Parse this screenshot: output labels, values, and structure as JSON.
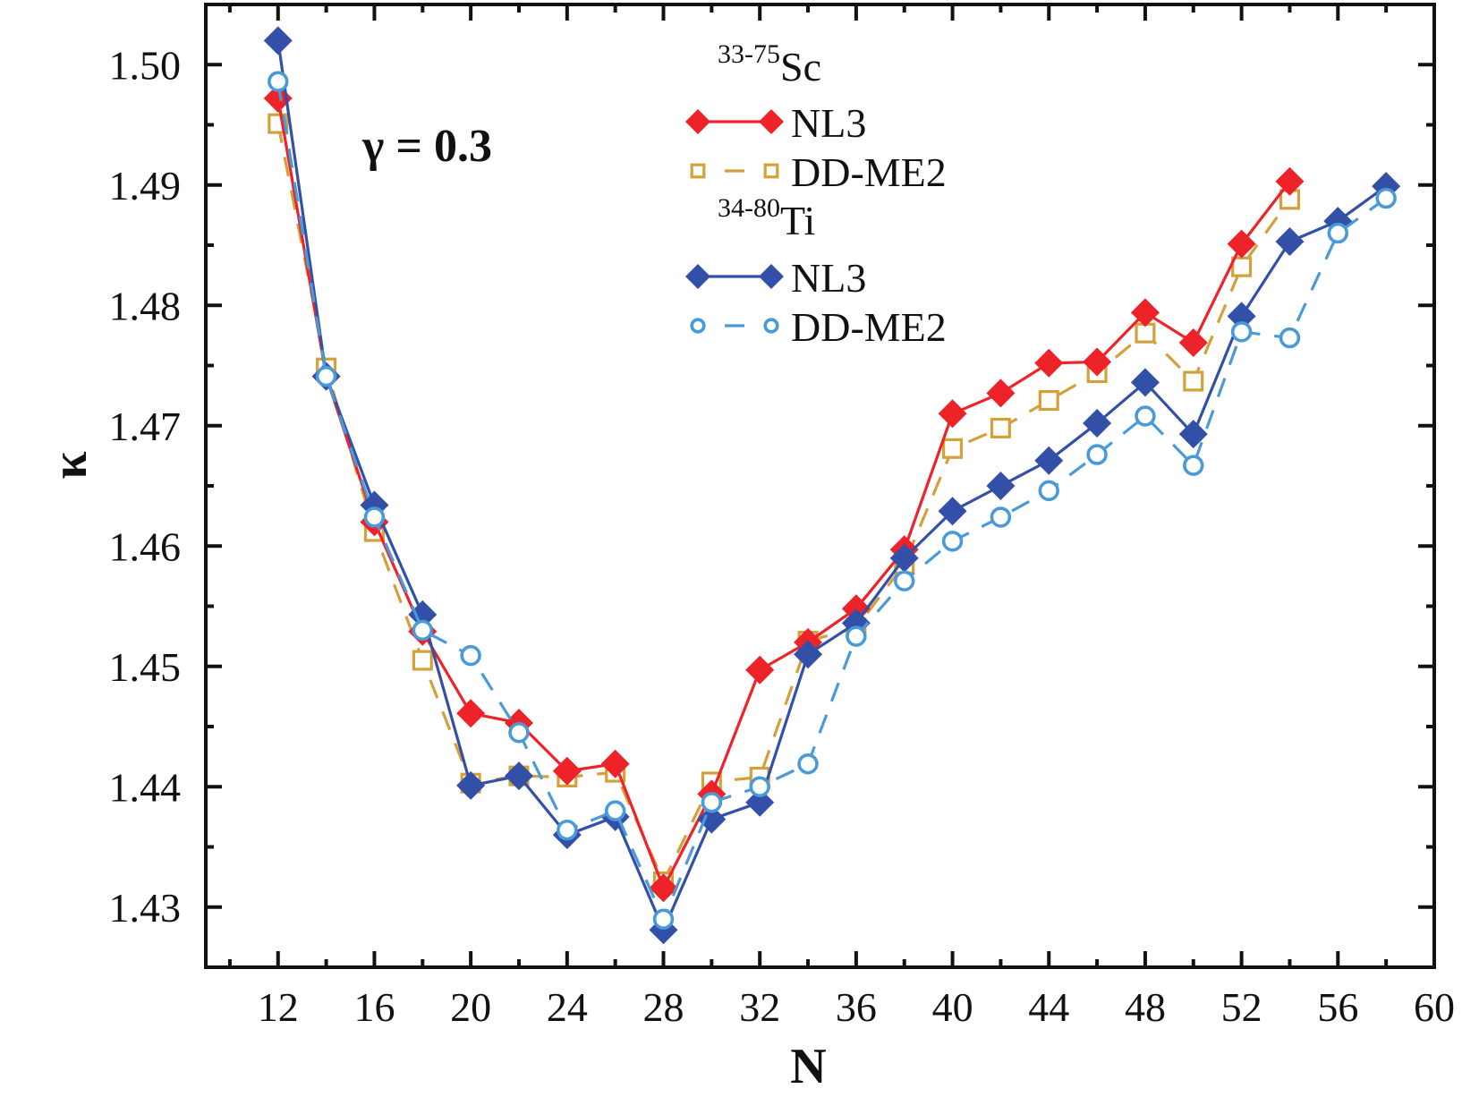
{
  "chart_data": {
    "type": "line",
    "title": "",
    "xlabel": "N",
    "ylabel": "κ",
    "xlim": [
      9,
      60
    ],
    "ylim": [
      1.425,
      1.505
    ],
    "grid": false,
    "x_ticks": [
      12,
      16,
      20,
      24,
      28,
      32,
      36,
      40,
      44,
      48,
      52,
      56,
      60
    ],
    "x_tick_labels": [
      "12",
      "16",
      "20",
      "24",
      "28",
      "32",
      "36",
      "40",
      "44",
      "48",
      "52",
      "56",
      "60"
    ],
    "y_ticks": [
      1.43,
      1.44,
      1.45,
      1.46,
      1.47,
      1.48,
      1.49,
      1.5
    ],
    "y_tick_labels": [
      "1.43",
      "1.44",
      "1.45",
      "1.46",
      "1.47",
      "1.48",
      "1.49",
      "1.50"
    ],
    "annotation": "γ = 0.3",
    "legend_position": "top-center",
    "legend_groups": [
      {
        "isotope_mass": "33-75",
        "element": "Sc"
      },
      {
        "isotope_mass": "34-80",
        "element": "Ti"
      }
    ],
    "series": [
      {
        "name": "NL3",
        "group": "Sc",
        "color": "#ee2229",
        "marker": "diamond-filled",
        "line": "solid",
        "x": [
          12,
          14,
          16,
          18,
          20,
          22,
          24,
          26,
          28,
          30,
          32,
          34,
          36,
          38,
          40,
          42,
          44,
          46,
          48,
          50,
          52,
          54
        ],
        "y": [
          1.4972,
          1.4741,
          1.462,
          1.4529,
          1.4461,
          1.4453,
          1.4413,
          1.4419,
          1.4316,
          1.4394,
          1.4497,
          1.452,
          1.4548,
          1.4597,
          1.471,
          1.4727,
          1.4752,
          1.4753,
          1.4794,
          1.4769,
          1.4851,
          1.4903
        ]
      },
      {
        "name": "DD-ME2",
        "group": "Sc",
        "color": "#d4a03a",
        "marker": "square-open",
        "line": "dashed",
        "x": [
          12,
          14,
          16,
          18,
          20,
          22,
          24,
          26,
          28,
          30,
          32,
          34,
          36,
          38,
          40,
          42,
          44,
          46,
          48,
          50,
          52,
          54
        ],
        "y": [
          1.4951,
          1.4748,
          1.4612,
          1.4505,
          1.4403,
          1.4409,
          1.4408,
          1.4412,
          1.4321,
          1.4404,
          1.4408,
          1.4521,
          1.4532,
          1.4585,
          1.4681,
          1.4698,
          1.4721,
          1.4744,
          1.4777,
          1.4737,
          1.4832,
          1.4888
        ]
      },
      {
        "name": "NL3",
        "group": "Ti",
        "color": "#3350a8",
        "marker": "diamond-filled",
        "line": "solid",
        "x": [
          12,
          14,
          16,
          18,
          20,
          22,
          24,
          26,
          28,
          30,
          32,
          34,
          36,
          38,
          40,
          42,
          44,
          46,
          48,
          50,
          52,
          54,
          56,
          58
        ],
        "y": [
          1.502,
          1.4741,
          1.4634,
          1.4543,
          1.4401,
          1.4409,
          1.436,
          1.4375,
          1.4281,
          1.4373,
          1.4387,
          1.451,
          1.4536,
          1.459,
          1.4629,
          1.465,
          1.4671,
          1.4702,
          1.4736,
          1.4693,
          1.4791,
          1.4853,
          1.487,
          1.4899
        ]
      },
      {
        "name": "DD-ME2",
        "group": "Ti",
        "color": "#4a9ad8",
        "marker": "circle-open",
        "line": "dashed",
        "x": [
          12,
          14,
          16,
          18,
          20,
          22,
          24,
          26,
          28,
          30,
          32,
          34,
          36,
          38,
          40,
          42,
          44,
          46,
          48,
          50,
          52,
          54,
          56,
          58
        ],
        "y": [
          1.4986,
          1.4741,
          1.4624,
          1.453,
          1.4509,
          1.4445,
          1.4364,
          1.438,
          1.429,
          1.4387,
          1.44,
          1.4419,
          1.4525,
          1.4571,
          1.4604,
          1.4624,
          1.4646,
          1.4676,
          1.4708,
          1.4667,
          1.4778,
          1.4773,
          1.486,
          1.4889
        ]
      }
    ]
  }
}
